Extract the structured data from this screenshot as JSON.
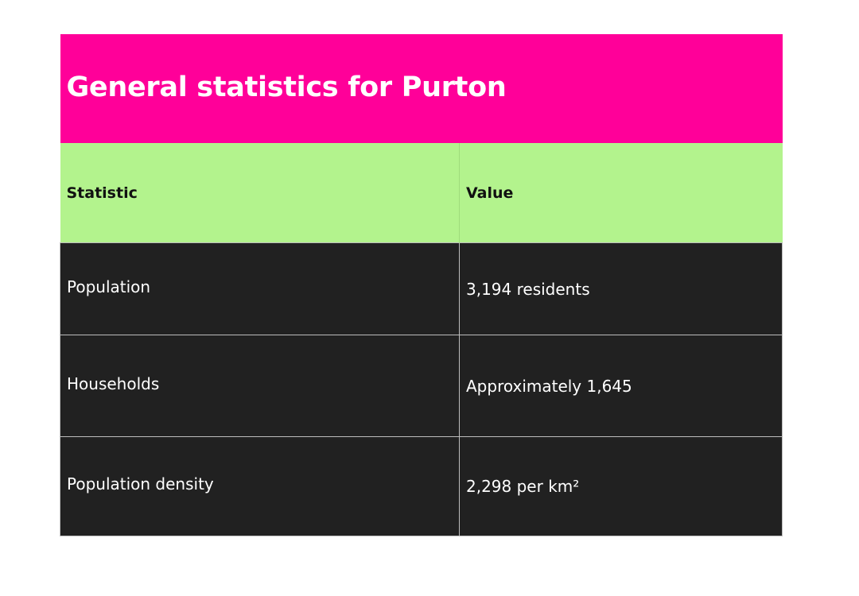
{
  "table": {
    "title": "General statistics for Purton",
    "headers": [
      "Statistic",
      "Value"
    ],
    "rows": [
      {
        "statistic": "Population",
        "value": "3,194 residents"
      },
      {
        "statistic": "Households",
        "value": "Approximately 1,645"
      },
      {
        "statistic": "Population density",
        "value": "2,298 per km²"
      }
    ]
  },
  "colors": {
    "title_background": "#ff0099",
    "header_background": "#b3f38d",
    "row_background": "#212121"
  }
}
